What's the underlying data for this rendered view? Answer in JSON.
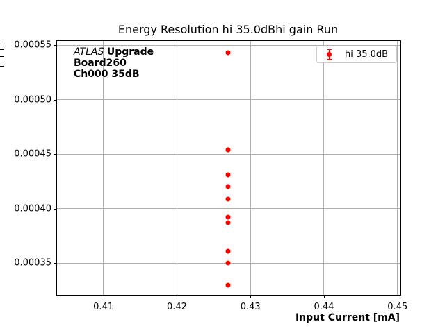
{
  "title": "Energy Resolution hi 35.0dBhi gain Run",
  "annotation": {
    "experiment": "ATLAS",
    "experiment_suffix": "Upgrade",
    "line2": "Board260",
    "line3": "Ch000 35dB"
  },
  "legend": {
    "entry": "hi 35.0dB",
    "marker_color": "#ff0000"
  },
  "axes": {
    "x_label": "Input Current [mA]",
    "x_ticks": [
      "0.41",
      "0.42",
      "0.43",
      "0.44",
      "0.45"
    ],
    "y_ticks": [
      "0.00035",
      "0.00040",
      "0.00045",
      "0.00050",
      "0.00055"
    ],
    "y_label_clipped": true
  },
  "colors": {
    "series": "#ff0000",
    "grid": "#b0b0b0",
    "spine": "#000000",
    "legend_border": "#cccccc"
  },
  "chart_data": {
    "type": "scatter",
    "title": "Energy Resolution hi 35.0dBhi gain Run",
    "xlabel": "Input Current [mA]",
    "ylabel": "",
    "grid": true,
    "legend_position": "upper right",
    "xlim": [
      0.4037,
      0.4504
    ],
    "ylim": [
      0.000321,
      0.000554
    ],
    "x_tick_values": [
      0.41,
      0.42,
      0.43,
      0.44,
      0.45
    ],
    "y_tick_values": [
      0.00035,
      0.0004,
      0.00045,
      0.0005,
      0.00055
    ],
    "series": [
      {
        "name": "hi 35.0dB",
        "color": "#ff0000",
        "marker": "circle-with-errorbar",
        "x": [
          0.427,
          0.427,
          0.427,
          0.427,
          0.427,
          0.427,
          0.427,
          0.427,
          0.427,
          0.427
        ],
        "y": [
          0.000543,
          0.000454,
          0.000431,
          0.00042,
          0.000409,
          0.000392,
          0.000387,
          0.000361,
          0.00035,
          0.00033
        ],
        "yerr": 2e-06
      }
    ]
  }
}
